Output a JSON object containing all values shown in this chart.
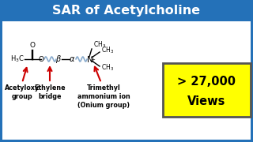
{
  "title": "SAR of Acetylcholine",
  "title_bg": "#2471b8",
  "title_fg": "#ffffff",
  "bg_color": "#f0f0f0",
  "border_color": "#2471b8",
  "views_text1": "> 27,000",
  "views_text2": "Views",
  "views_bg": "#ffff00",
  "views_fg": "#000000",
  "label1": "Acetyloxy\ngroup",
  "label2": "Ethylene\nbridge",
  "label3": "Trimethyl\nammonium ion\n(Onium group)",
  "arrow_color": "#cc0000",
  "structure_color": "#000000",
  "wavy_color": "#88aacc",
  "inner_bg": "#f8f8f8"
}
